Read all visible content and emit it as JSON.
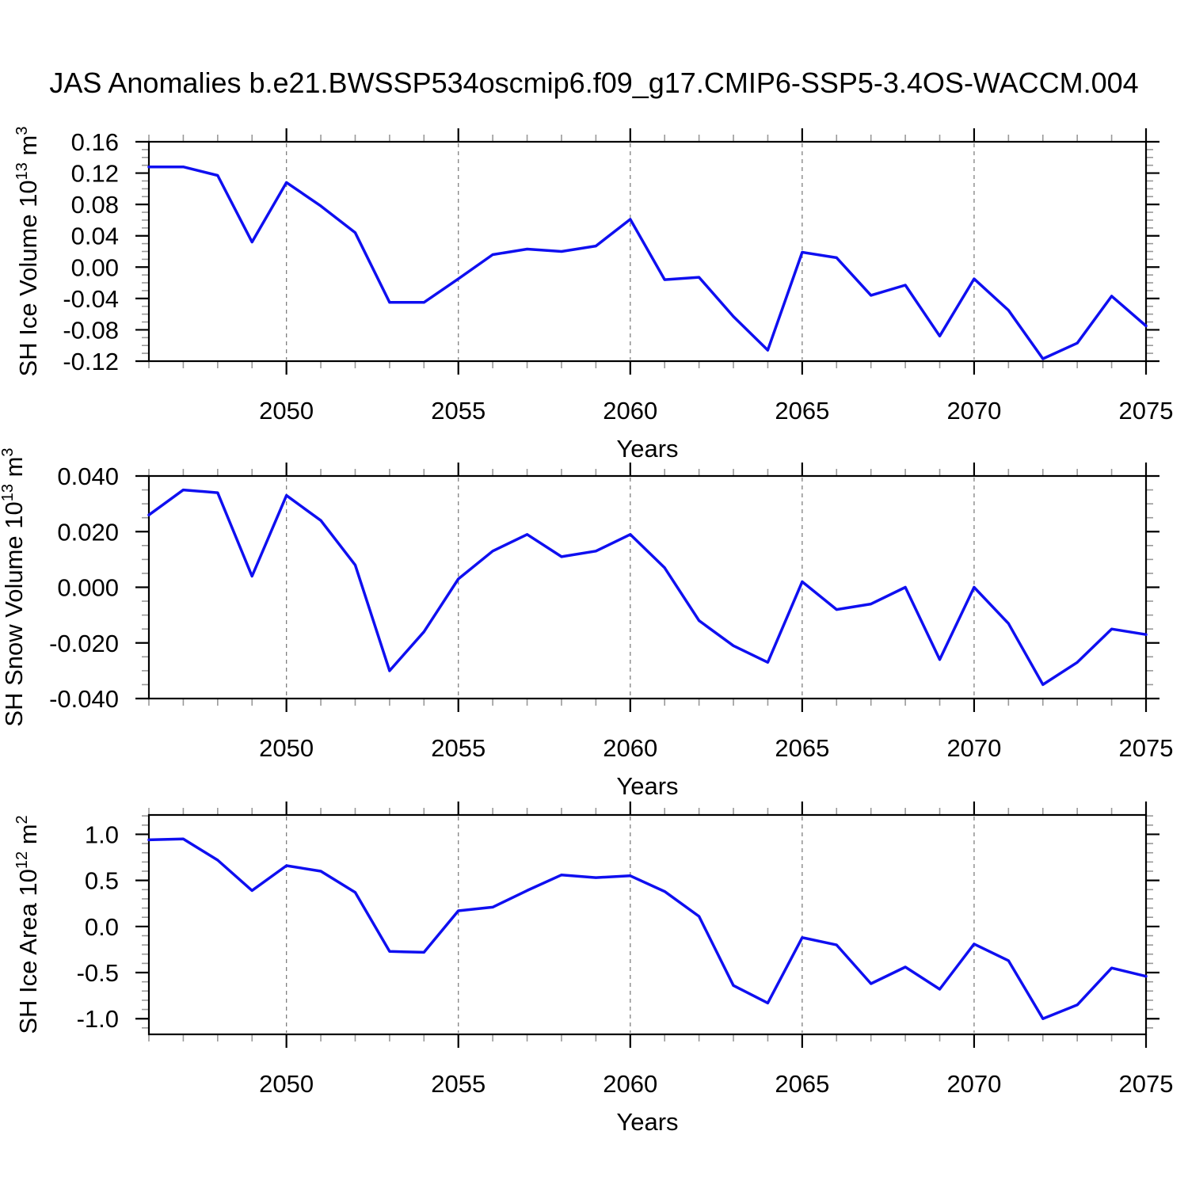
{
  "title": "JAS Anomalies b.e21.BWSSP534oscmip6.f09_g17.CMIP6-SSP5-3.4OS-WACCM.004",
  "line_color": "#0f0ff0",
  "frame_color": "#000000",
  "minor_tick_color": "#999999",
  "grid_color": "#808080",
  "chart_data": [
    {
      "type": "line",
      "title": "",
      "xlabel": "Years",
      "ylabel": "SH Ice Volume 10^{13} m^{3}",
      "x": [
        2046,
        2047,
        2048,
        2049,
        2050,
        2051,
        2052,
        2053,
        2054,
        2055,
        2056,
        2057,
        2058,
        2059,
        2060,
        2061,
        2062,
        2063,
        2064,
        2065,
        2066,
        2067,
        2068,
        2069,
        2070,
        2071,
        2072,
        2073,
        2074,
        2075
      ],
      "values": [
        0.128,
        0.128,
        0.117,
        0.032,
        0.108,
        0.078,
        0.044,
        -0.045,
        -0.045,
        -0.015,
        0.016,
        0.023,
        0.02,
        0.027,
        0.061,
        -0.016,
        -0.013,
        -0.063,
        -0.106,
        0.019,
        0.012,
        -0.036,
        -0.023,
        -0.088,
        -0.015,
        -0.055,
        -0.117,
        -0.097,
        -0.037,
        -0.075
      ],
      "xlim": [
        2046,
        2075
      ],
      "ylim": [
        -0.12,
        0.16
      ],
      "yticks": [
        0.16,
        0.12,
        0.08,
        0.04,
        0.0,
        -0.04,
        -0.08,
        -0.12
      ],
      "ytick_labels": [
        "0.16",
        "0.12",
        "0.08",
        "0.04",
        "0.00",
        "-0.04",
        "-0.08",
        "-0.12"
      ],
      "ytick_minor_step": 0.01,
      "xticks_major": [
        2050,
        2055,
        2060,
        2065,
        2070,
        2075
      ],
      "xtick_labels": [
        "2050",
        "2055",
        "2060",
        "2065",
        "2070",
        "2075"
      ],
      "xtick_minor_step": 1,
      "grid": "dashed-vertical-at-major-xticks",
      "legend": "none"
    },
    {
      "type": "line",
      "title": "",
      "xlabel": "Years",
      "ylabel": "SH Snow Volume 10^{13} m^{3}",
      "x": [
        2046,
        2047,
        2048,
        2049,
        2050,
        2051,
        2052,
        2053,
        2054,
        2055,
        2056,
        2057,
        2058,
        2059,
        2060,
        2061,
        2062,
        2063,
        2064,
        2065,
        2066,
        2067,
        2068,
        2069,
        2070,
        2071,
        2072,
        2073,
        2074,
        2075
      ],
      "values": [
        0.026,
        0.035,
        0.034,
        0.004,
        0.033,
        0.024,
        0.008,
        -0.03,
        -0.016,
        0.003,
        0.013,
        0.019,
        0.011,
        0.013,
        0.019,
        0.007,
        -0.012,
        -0.021,
        -0.027,
        0.002,
        -0.008,
        -0.006,
        0.0,
        -0.026,
        0.0,
        -0.013,
        -0.035,
        -0.027,
        -0.015,
        -0.017
      ],
      "xlim": [
        2046,
        2075
      ],
      "ylim": [
        -0.04,
        0.04
      ],
      "yticks": [
        0.04,
        0.02,
        0.0,
        -0.02,
        -0.04
      ],
      "ytick_labels": [
        "0.040",
        "0.020",
        "0.000",
        "-0.020",
        "-0.040"
      ],
      "ytick_minor_step": 0.005,
      "xticks_major": [
        2050,
        2055,
        2060,
        2065,
        2070,
        2075
      ],
      "xtick_labels": [
        "2050",
        "2055",
        "2060",
        "2065",
        "2070",
        "2075"
      ],
      "xtick_minor_step": 1,
      "grid": "dashed-vertical-at-major-xticks",
      "legend": "none"
    },
    {
      "type": "line",
      "title": "",
      "xlabel": "Years",
      "ylabel": "SH Ice Area 10^{12} m^{2}",
      "x": [
        2046,
        2047,
        2048,
        2049,
        2050,
        2051,
        2052,
        2053,
        2054,
        2055,
        2056,
        2057,
        2058,
        2059,
        2060,
        2061,
        2062,
        2063,
        2064,
        2065,
        2066,
        2067,
        2068,
        2069,
        2070,
        2071,
        2072,
        2073,
        2074,
        2075
      ],
      "values": [
        0.94,
        0.95,
        0.72,
        0.39,
        0.66,
        0.6,
        0.37,
        -0.27,
        -0.28,
        0.17,
        0.21,
        0.39,
        0.56,
        0.53,
        0.55,
        0.38,
        0.11,
        -0.64,
        -0.83,
        -0.12,
        -0.2,
        -0.62,
        -0.44,
        -0.68,
        -0.19,
        -0.37,
        -1.0,
        -0.85,
        -0.45,
        -0.54
      ],
      "xlim": [
        2046,
        2075
      ],
      "ylim": [
        -1.17,
        1.21
      ],
      "yticks": [
        1.0,
        0.5,
        0.0,
        -0.5,
        -1.0
      ],
      "ytick_labels": [
        "1.0",
        "0.5",
        "0.0",
        "-0.5",
        "-1.0"
      ],
      "ytick_minor_step": 0.1,
      "xticks_major": [
        2050,
        2055,
        2060,
        2065,
        2070,
        2075
      ],
      "xtick_labels": [
        "2050",
        "2055",
        "2060",
        "2065",
        "2070",
        "2075"
      ],
      "xtick_minor_step": 1,
      "grid": "dashed-vertical-at-major-xticks",
      "legend": "none"
    }
  ]
}
